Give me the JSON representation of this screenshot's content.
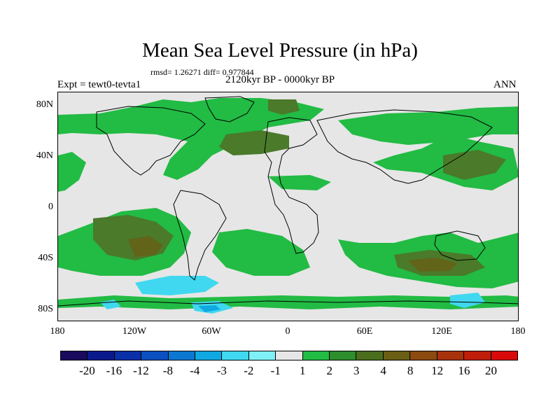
{
  "title": "Mean Sea Level Pressure (in hPa)",
  "stats": "rmsd= 1.26271 diff= 0.977844",
  "expt": "Expt = tewt0-tevta1",
  "period": "2120kyr BP - 0000kyr BP",
  "season": "ANN",
  "y_labels": [
    "80N",
    "40N",
    "0",
    "40S",
    "80S"
  ],
  "x_labels": [
    "180",
    "120W",
    "60W",
    "0",
    "60E",
    "120E",
    "180"
  ],
  "colorbar": {
    "colors": [
      "#1a0a5e",
      "#0a1a8c",
      "#0a30a8",
      "#0a50c0",
      "#0a78d0",
      "#10a8e0",
      "#40d8f0",
      "#80f0f8",
      "#e6e6e6",
      "#22bb44",
      "#2e8e2e",
      "#4a6e1e",
      "#6a5e14",
      "#8a4a10",
      "#a8320c",
      "#c01e0a",
      "#d80a0a"
    ],
    "labels": [
      "-20",
      "-16",
      "-12",
      "-8",
      "-4",
      "-3",
      "-2",
      "-1",
      "1",
      "2",
      "3",
      "4",
      "8",
      "12",
      "16",
      "20"
    ]
  }
}
